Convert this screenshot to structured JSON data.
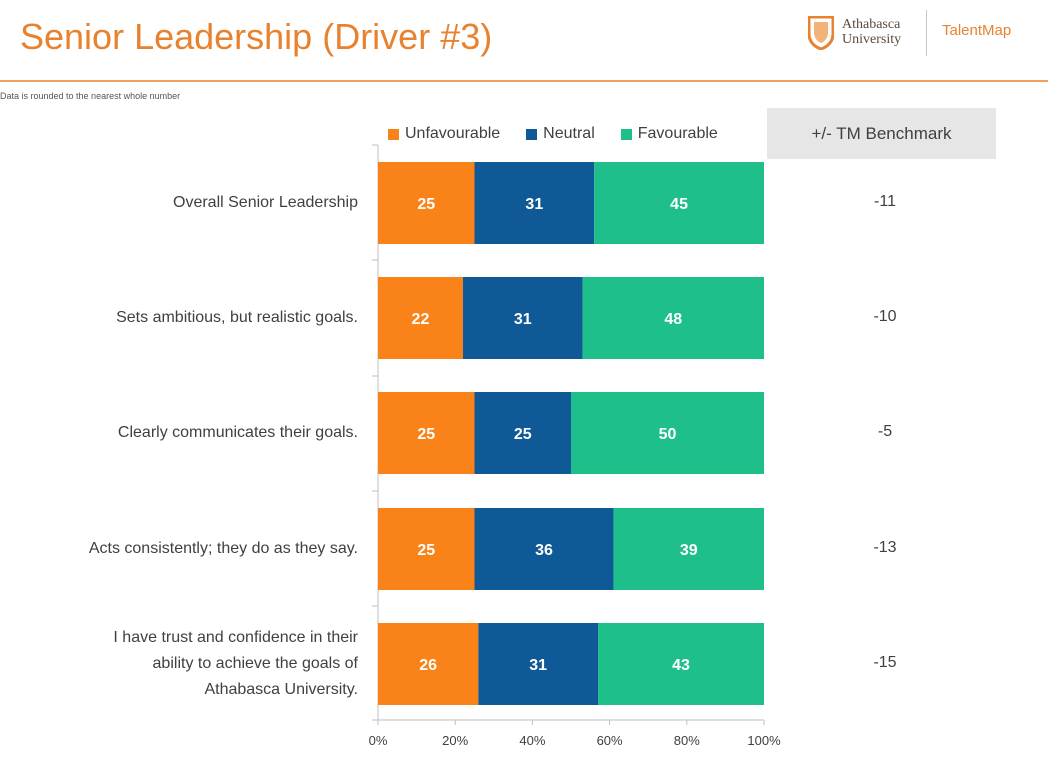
{
  "header": {
    "title": "Senior Leadership (Driver #3)",
    "note": "Data is rounded to the nearest whole number",
    "logo_university": "Athabasca University",
    "logo_talentmap": "TalentMap",
    "benchmark_header": "+/- TM Benchmark"
  },
  "colors": {
    "unfavourable": "#f98319",
    "neutral": "#0f5a96",
    "favourable": "#1fbf8c",
    "title": "#e8822f"
  },
  "chart_data": {
    "type": "bar",
    "orientation": "horizontal",
    "stacked": true,
    "percent_axis": true,
    "categories": [
      "Overall Senior Leadership",
      "Sets ambitious, but realistic goals.",
      "Clearly communicates their goals.",
      "Acts consistently; they do as they say.",
      "I have trust and confidence in their ability to achieve the goals of Athabasca University."
    ],
    "series": [
      {
        "name": "Unfavourable",
        "values": [
          25,
          22,
          25,
          25,
          26
        ]
      },
      {
        "name": "Neutral",
        "values": [
          31,
          31,
          25,
          36,
          31
        ]
      },
      {
        "name": "Favourable",
        "values": [
          45,
          48,
          50,
          39,
          43
        ]
      }
    ],
    "benchmark": [
      "-11",
      "-10",
      "-5",
      "-13",
      "-15"
    ],
    "xticks": [
      "0%",
      "20%",
      "40%",
      "60%",
      "80%",
      "100%"
    ],
    "xlim": [
      0,
      100
    ],
    "legend": "top"
  }
}
